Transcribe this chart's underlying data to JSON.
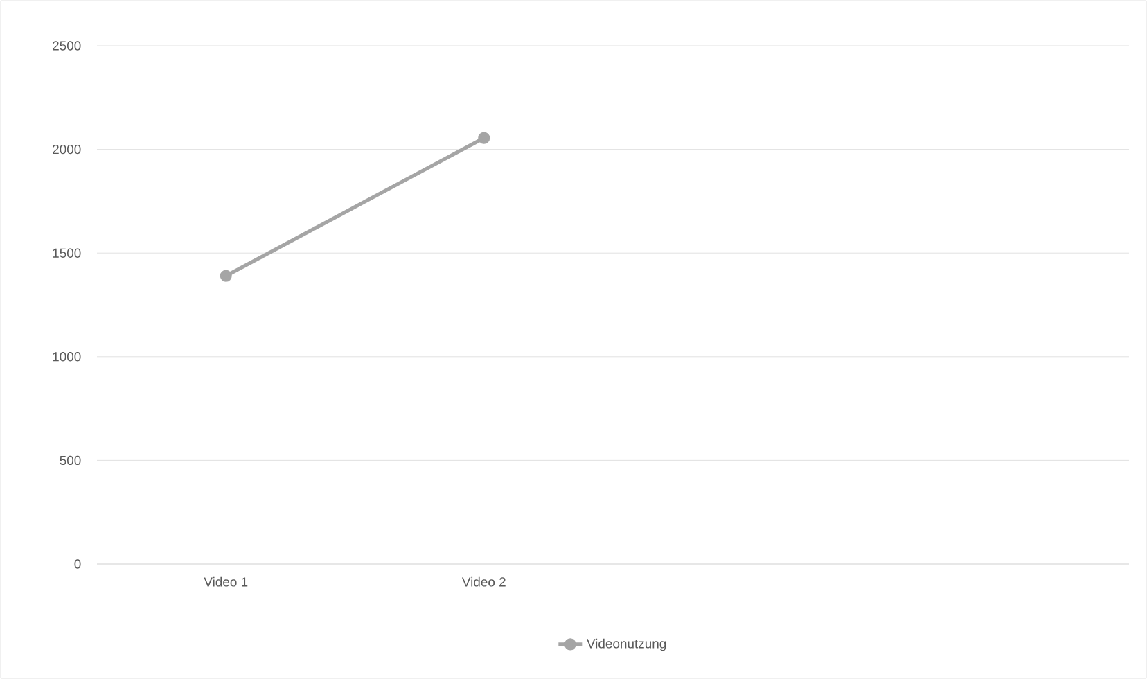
{
  "chart_data": {
    "type": "line",
    "categories": [
      "Video 1",
      "Video 2",
      null,
      null
    ],
    "series": [
      {
        "name": "Videonutzung",
        "color": "#a5a5a5",
        "values": [
          1390,
          2055,
          null,
          null
        ]
      }
    ],
    "ylim": [
      0,
      2500
    ],
    "yticks": [
      0,
      500,
      1000,
      1500,
      2000,
      2500
    ],
    "grid": "y",
    "legend": "bottom",
    "marker": "circle",
    "line_style": "solid"
  }
}
